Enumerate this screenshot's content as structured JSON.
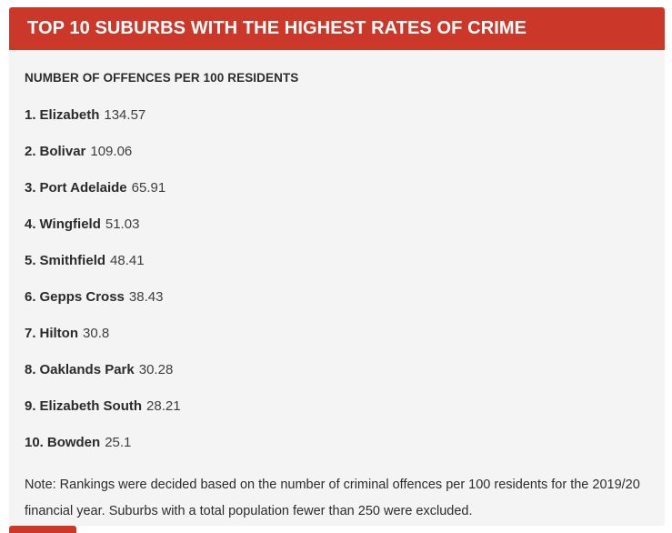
{
  "header": {
    "title": "TOP 10 SUBURBS WITH THE HIGHEST RATES OF CRIME"
  },
  "subtitle": "NUMBER OF OFFENCES PER 100 RESIDENTS",
  "ranking": {
    "items": [
      {
        "rank": "1.",
        "name": "Elizabeth",
        "value": "134.57"
      },
      {
        "rank": "2.",
        "name": "Bolivar",
        "value": "109.06"
      },
      {
        "rank": "3.",
        "name": "Port Adelaide",
        "value": "65.91"
      },
      {
        "rank": "4.",
        "name": "Wingfield",
        "value": "51.03"
      },
      {
        "rank": "5.",
        "name": "Smithfield",
        "value": "48.41"
      },
      {
        "rank": "6.",
        "name": "Gepps Cross",
        "value": "38.43"
      },
      {
        "rank": "7.",
        "name": "Hilton",
        "value": "30.8"
      },
      {
        "rank": "8.",
        "name": "Oaklands Park",
        "value": "30.28"
      },
      {
        "rank": "9.",
        "name": "Elizabeth South",
        "value": "28.21"
      },
      {
        "rank": "10.",
        "name": "Bowden",
        "value": "25.1"
      }
    ]
  },
  "note": "Note: Rankings were decided based on the number of criminal offences per 100 residents for the 2019/20 financial year. Suburbs with a total population fewer than 250 were excluded.",
  "colors": {
    "banner_red": "#cb382a",
    "card_background": "#f4f4f4",
    "heading_text": "#ffffff",
    "body_text": "#2b2b2b"
  }
}
